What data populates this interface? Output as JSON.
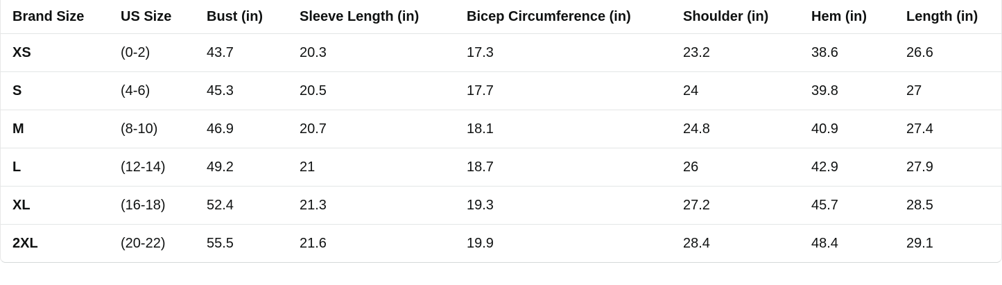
{
  "table": {
    "header": [
      "Brand Size",
      "US Size",
      "Bust (in)",
      "Sleeve Length (in)",
      "Bicep Circumference (in)",
      "Shoulder (in)",
      "Hem (in)",
      "Length (in)"
    ],
    "rows": [
      [
        "XS",
        "(0-2)",
        "43.7",
        "20.3",
        "17.3",
        "23.2",
        "38.6",
        "26.6"
      ],
      [
        "S",
        "(4-6)",
        "45.3",
        "20.5",
        "17.7",
        "24",
        "39.8",
        "27"
      ],
      [
        "M",
        "(8-10)",
        "46.9",
        "20.7",
        "18.1",
        "24.8",
        "40.9",
        "27.4"
      ],
      [
        "L",
        "(12-14)",
        "49.2",
        "21",
        "18.7",
        "26",
        "42.9",
        "27.9"
      ],
      [
        "XL",
        "(16-18)",
        "52.4",
        "21.3",
        "19.3",
        "27.2",
        "45.7",
        "28.5"
      ],
      [
        "2XL",
        "(20-22)",
        "55.5",
        "21.6",
        "19.9",
        "28.4",
        "48.4",
        "29.1"
      ]
    ]
  }
}
